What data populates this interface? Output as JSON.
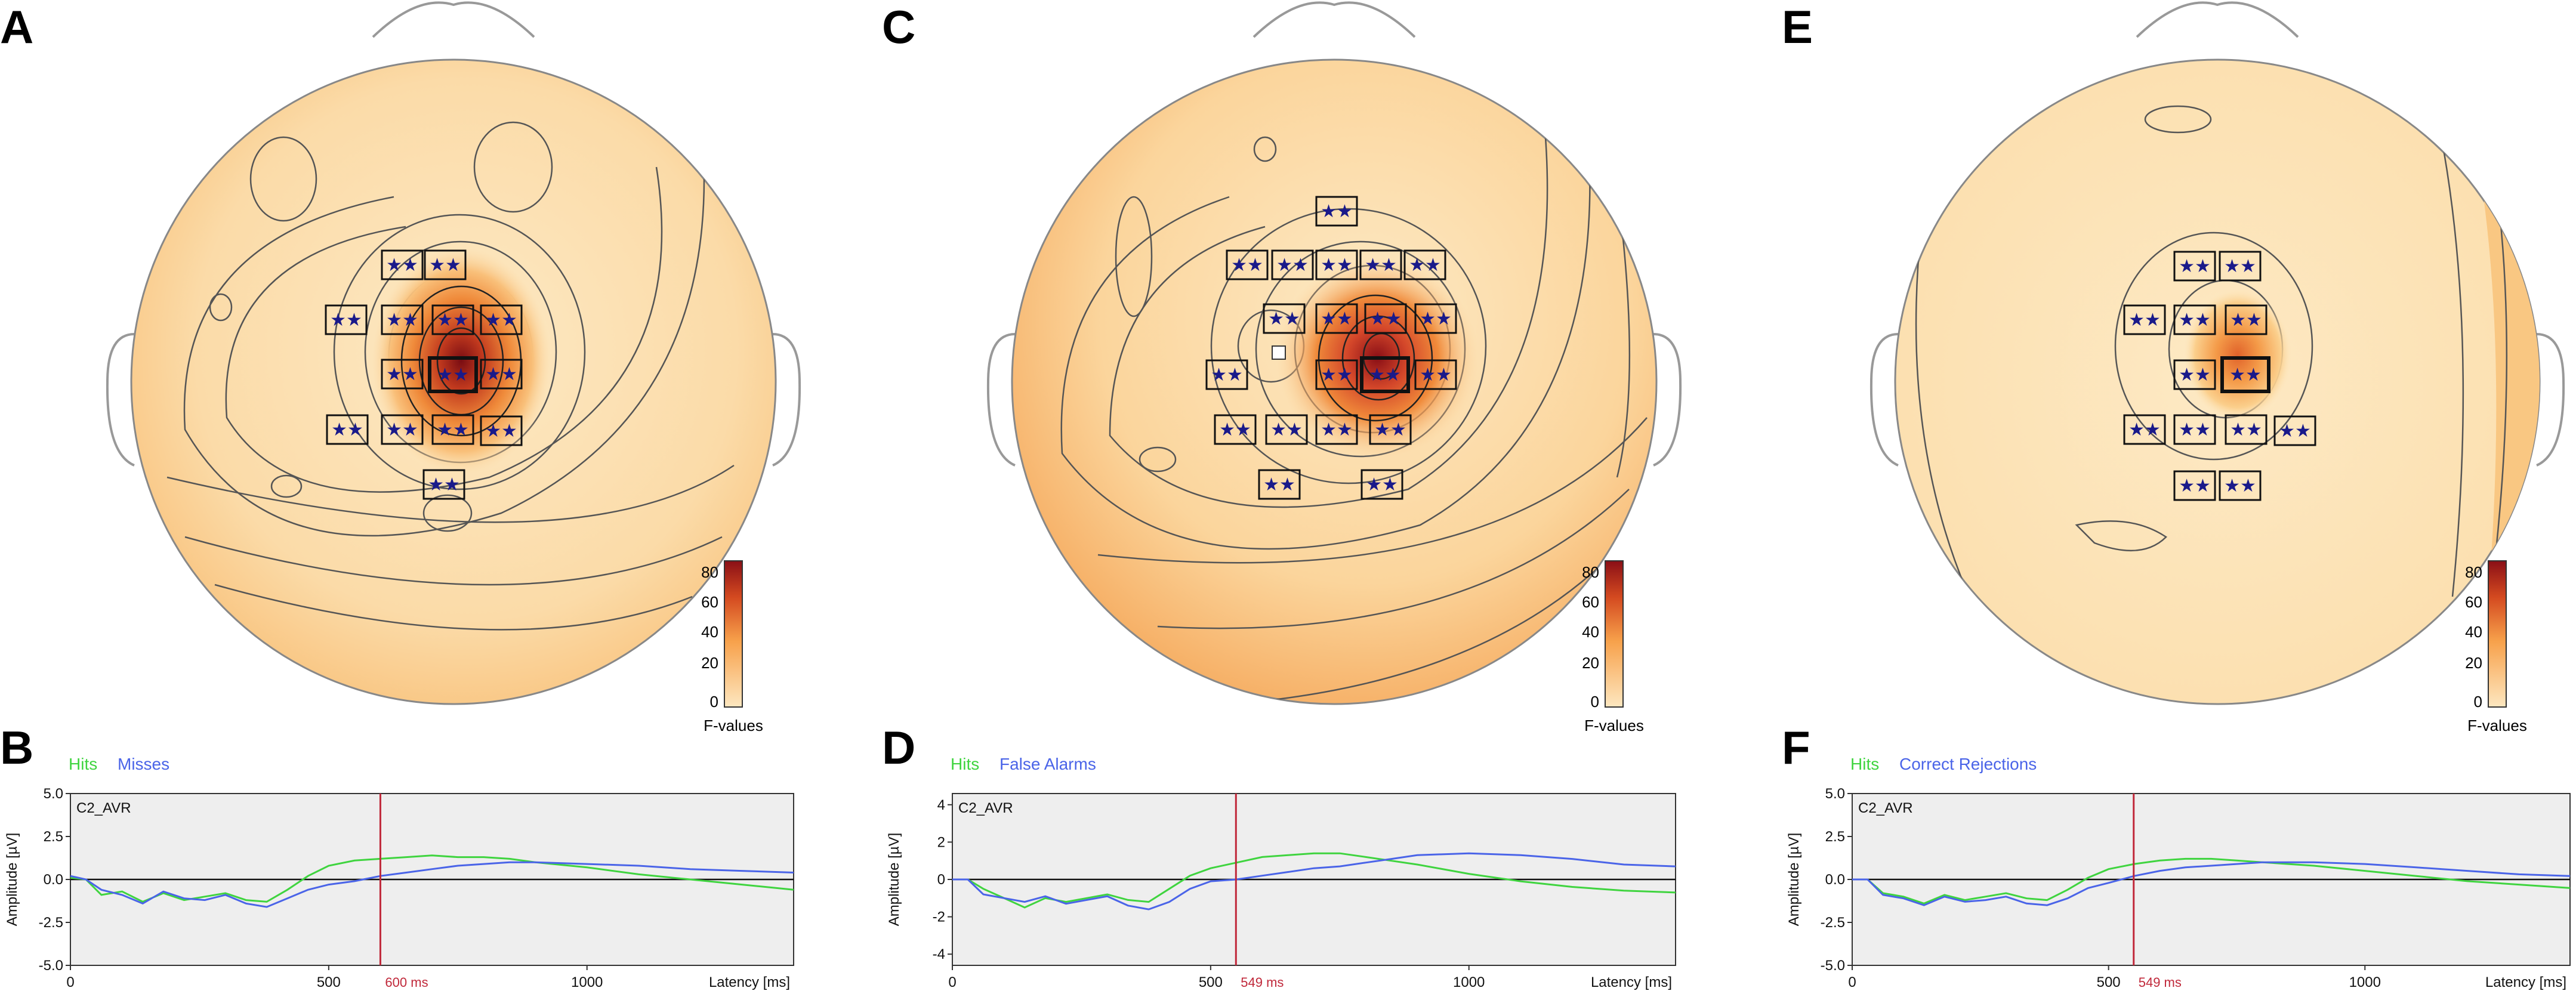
{
  "panels": [
    {
      "letter": "A",
      "type": "topomap",
      "colorbar": {
        "ticks": [
          "0",
          "20",
          "40",
          "60",
          "80"
        ],
        "label": "F-values"
      }
    },
    {
      "letter": "C",
      "type": "topomap",
      "colorbar": {
        "ticks": [
          "0",
          "20",
          "40",
          "60",
          "80"
        ],
        "label": "F-values"
      }
    },
    {
      "letter": "E",
      "type": "topomap",
      "colorbar": {
        "ticks": [
          "0",
          "20",
          "40",
          "60",
          "80"
        ],
        "label": "F-values"
      }
    },
    {
      "letter": "B",
      "type": "erp",
      "legend": [
        "Hits",
        "Misses"
      ]
    },
    {
      "letter": "D",
      "type": "erp",
      "legend": [
        "Hits",
        "False Alarms"
      ]
    },
    {
      "letter": "F",
      "type": "erp",
      "legend": [
        "Hits",
        "Correct Rejections"
      ]
    }
  ],
  "significance_marker": "★★",
  "colors": {
    "hits": "#3fd43f",
    "other": "#4a64e8",
    "cursor": "#c0283a",
    "plot_bg": "#eeeeee",
    "low": "#fde7c0",
    "high": "#8a0f16"
  },
  "chart_data": [
    {
      "type": "line",
      "panel": "B",
      "channel_label": "C2_AVR",
      "ylabel": "Amplitude [µV]",
      "xlabel": "Latency [ms]",
      "ylim": [
        -5,
        5
      ],
      "yticks": [
        "5.0",
        "2.5",
        "0.0",
        "-2.5",
        "-5.0"
      ],
      "ytick_values": [
        5,
        2.5,
        0,
        -2.5,
        -5
      ],
      "xlim": [
        0,
        1400
      ],
      "xticks": [
        "0",
        "500",
        "1000"
      ],
      "xtick_values": [
        0,
        500,
        1000
      ],
      "cursor": {
        "x": 600,
        "label": "600 ms"
      },
      "series": [
        {
          "name": "Hits",
          "x": [
            0,
            30,
            60,
            100,
            140,
            180,
            220,
            260,
            300,
            340,
            380,
            420,
            460,
            500,
            550,
            600,
            650,
            700,
            750,
            800,
            850,
            900,
            1000,
            1100,
            1200,
            1300,
            1400
          ],
          "values": [
            0.1,
            0,
            -0.9,
            -0.7,
            -1.3,
            -0.8,
            -1.2,
            -1,
            -0.8,
            -1.2,
            -1.3,
            -0.6,
            0.2,
            0.8,
            1.1,
            1.2,
            1.3,
            1.4,
            1.3,
            1.3,
            1.2,
            1,
            0.7,
            0.3,
            0,
            -0.3,
            -0.6
          ]
        },
        {
          "name": "Misses",
          "x": [
            0,
            30,
            60,
            100,
            140,
            180,
            220,
            260,
            300,
            340,
            380,
            420,
            460,
            500,
            550,
            600,
            650,
            700,
            750,
            800,
            850,
            900,
            1000,
            1100,
            1200,
            1300,
            1400
          ],
          "values": [
            0.2,
            0,
            -0.6,
            -0.9,
            -1.4,
            -0.7,
            -1.1,
            -1.2,
            -0.9,
            -1.4,
            -1.6,
            -1.1,
            -0.6,
            -0.3,
            -0.1,
            0.2,
            0.4,
            0.6,
            0.8,
            0.9,
            1,
            1,
            0.9,
            0.8,
            0.6,
            0.5,
            0.4
          ]
        }
      ]
    },
    {
      "type": "line",
      "panel": "D",
      "channel_label": "C2_AVR",
      "ylabel": "Amplitude [µV]",
      "xlabel": "Latency [ms]",
      "ylim": [
        -4.6,
        4.6
      ],
      "yticks": [
        "4",
        "2",
        "0",
        "-2",
        "-4"
      ],
      "ytick_values": [
        4,
        2,
        0,
        -2,
        -4
      ],
      "xlim": [
        0,
        1400
      ],
      "xticks": [
        "0",
        "500",
        "1000"
      ],
      "xtick_values": [
        0,
        500,
        1000
      ],
      "cursor": {
        "x": 549,
        "label": "549 ms"
      },
      "series": [
        {
          "name": "Hits",
          "x": [
            0,
            30,
            60,
            100,
            140,
            180,
            220,
            260,
            300,
            340,
            380,
            420,
            460,
            500,
            550,
            600,
            650,
            700,
            750,
            800,
            850,
            900,
            1000,
            1100,
            1200,
            1300,
            1400
          ],
          "values": [
            0,
            0,
            -0.5,
            -1,
            -1.5,
            -1,
            -1.2,
            -1,
            -0.8,
            -1.1,
            -1.2,
            -0.5,
            0.2,
            0.6,
            0.9,
            1.2,
            1.3,
            1.4,
            1.4,
            1.2,
            1,
            0.8,
            0.3,
            -0.1,
            -0.4,
            -0.6,
            -0.7
          ]
        },
        {
          "name": "False Alarms",
          "x": [
            0,
            30,
            60,
            100,
            140,
            180,
            220,
            260,
            300,
            340,
            380,
            420,
            460,
            500,
            550,
            600,
            650,
            700,
            750,
            800,
            850,
            900,
            1000,
            1100,
            1200,
            1300,
            1400
          ],
          "values": [
            0,
            0,
            -0.8,
            -1,
            -1.2,
            -0.9,
            -1.3,
            -1.1,
            -0.9,
            -1.4,
            -1.6,
            -1.2,
            -0.5,
            -0.1,
            0,
            0.2,
            0.4,
            0.6,
            0.7,
            0.9,
            1.1,
            1.3,
            1.4,
            1.3,
            1.1,
            0.8,
            0.7
          ]
        }
      ]
    },
    {
      "type": "line",
      "panel": "F",
      "channel_label": "C2_AVR",
      "ylabel": "Amplitude [µV]",
      "xlabel": "Latency [ms]",
      "ylim": [
        -5,
        5
      ],
      "yticks": [
        "5.0",
        "2.5",
        "0.0",
        "-2.5",
        "-5.0"
      ],
      "ytick_values": [
        5,
        2.5,
        0,
        -2.5,
        -5
      ],
      "xlim": [
        0,
        1400
      ],
      "xticks": [
        "0",
        "500",
        "1000"
      ],
      "xtick_values": [
        0,
        500,
        1000
      ],
      "cursor": {
        "x": 549,
        "label": "549 ms"
      },
      "series": [
        {
          "name": "Hits",
          "x": [
            0,
            30,
            60,
            100,
            140,
            180,
            220,
            260,
            300,
            340,
            380,
            420,
            460,
            500,
            550,
            600,
            650,
            700,
            750,
            800,
            850,
            900,
            1000,
            1100,
            1200,
            1300,
            1400
          ],
          "values": [
            0,
            0,
            -0.8,
            -1,
            -1.4,
            -0.9,
            -1.2,
            -1,
            -0.8,
            -1.1,
            -1.2,
            -0.6,
            0.1,
            0.6,
            0.9,
            1.1,
            1.2,
            1.2,
            1.1,
            1,
            0.9,
            0.8,
            0.5,
            0.2,
            -0.1,
            -0.3,
            -0.5
          ]
        },
        {
          "name": "Correct Rejections",
          "x": [
            0,
            30,
            60,
            100,
            140,
            180,
            220,
            260,
            300,
            340,
            380,
            420,
            460,
            500,
            550,
            600,
            650,
            700,
            750,
            800,
            850,
            900,
            1000,
            1100,
            1200,
            1300,
            1400
          ],
          "values": [
            0,
            0,
            -0.9,
            -1.1,
            -1.5,
            -1,
            -1.3,
            -1.2,
            -1,
            -1.4,
            -1.5,
            -1.1,
            -0.5,
            -0.2,
            0.2,
            0.5,
            0.7,
            0.8,
            0.9,
            1,
            1,
            1,
            0.9,
            0.7,
            0.5,
            0.3,
            0.2
          ]
        }
      ]
    }
  ]
}
